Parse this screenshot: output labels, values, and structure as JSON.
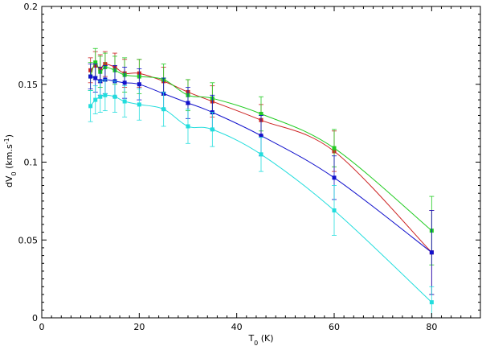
{
  "chart_data": {
    "type": "scatter",
    "xlabel": "T0 (K)",
    "ylabel": "dV0 (km.s-1)",
    "xlim": [
      0,
      90
    ],
    "ylim": [
      0,
      0.2
    ],
    "x_ticks": [
      0,
      20,
      40,
      60,
      80
    ],
    "y_ticks": [
      0,
      0.05,
      0.1,
      0.15,
      0.2
    ],
    "x_tick_labels": [
      "0",
      "20",
      "40",
      "60",
      "80"
    ],
    "y_tick_labels": [
      "0",
      "0.05",
      "0.1",
      "0.15",
      "0.2"
    ],
    "grid": false,
    "x": [
      10,
      11,
      12,
      13,
      15,
      17,
      20,
      25,
      30,
      35,
      45,
      60,
      80
    ],
    "series": [
      {
        "color": "#cc2222",
        "values": [
          0.159,
          0.162,
          0.16,
          0.163,
          0.161,
          0.157,
          0.157,
          0.152,
          0.145,
          0.139,
          0.127,
          0.107,
          0.042
        ],
        "errors": [
          0.008,
          0.009,
          0.009,
          0.008,
          0.009,
          0.009,
          0.009,
          0.009,
          0.008,
          0.01,
          0.01,
          0.013,
          0.027
        ]
      },
      {
        "color": "#22cc22",
        "values": [
          0.155,
          0.164,
          0.158,
          0.161,
          0.159,
          0.156,
          0.155,
          0.153,
          0.143,
          0.141,
          0.131,
          0.109,
          0.056
        ],
        "errors": [
          0.009,
          0.009,
          0.01,
          0.009,
          0.009,
          0.011,
          0.011,
          0.01,
          0.01,
          0.01,
          0.011,
          0.012,
          0.022
        ]
      },
      {
        "color": "#1111cc",
        "values": [
          0.155,
          0.154,
          0.152,
          0.153,
          0.152,
          0.151,
          0.15,
          0.144,
          0.138,
          0.132,
          0.117,
          0.09,
          0.042
        ],
        "errors": [
          0.008,
          0.009,
          0.009,
          0.009,
          0.01,
          0.01,
          0.01,
          0.01,
          0.01,
          0.011,
          0.013,
          0.014,
          0.027
        ]
      },
      {
        "color": "#22dddd",
        "values": [
          0.136,
          0.14,
          0.142,
          0.143,
          0.142,
          0.139,
          0.137,
          0.134,
          0.123,
          0.121,
          0.105,
          0.069,
          0.01
        ],
        "errors": [
          0.01,
          0.009,
          0.01,
          0.01,
          0.01,
          0.01,
          0.01,
          0.011,
          0.011,
          0.011,
          0.011,
          0.016,
          0.01
        ]
      }
    ]
  }
}
